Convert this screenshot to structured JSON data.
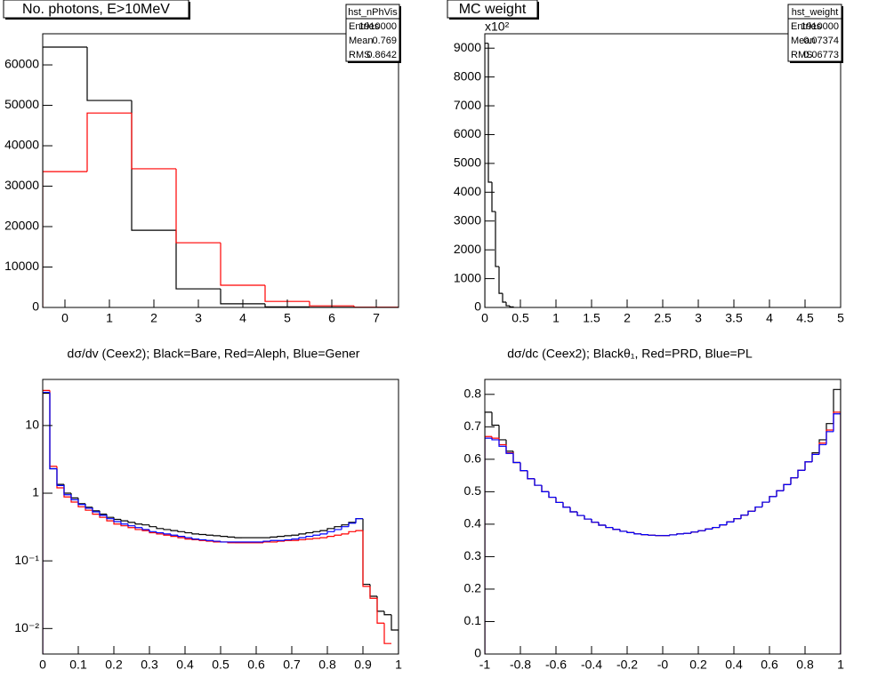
{
  "chart_data": [
    {
      "type": "histogram",
      "title": "No. photons, E>10MeV",
      "bins": [
        -0.5,
        0.5,
        1.5,
        2.5,
        3.5,
        4.5,
        5.5,
        6.5,
        7.5
      ],
      "series": [
        {
          "color": "#000000",
          "values": [
            64400,
            51200,
            19100,
            4600,
            900,
            150,
            20,
            0
          ]
        },
        {
          "color": "#ff0000",
          "values": [
            33600,
            48100,
            34300,
            16000,
            5500,
            1500,
            400,
            50
          ]
        }
      ],
      "xlim": [
        -0.5,
        7.5
      ],
      "ylim": [
        0,
        67700
      ],
      "xticks": [
        0,
        1,
        2,
        3,
        4,
        5,
        6,
        7
      ],
      "yticks": [
        0,
        10000,
        20000,
        30000,
        40000,
        50000,
        60000
      ],
      "log_y": false,
      "stats": {
        "name": "hst_nPhVis",
        "rows": [
          {
            "label": "Entries",
            "value": 1910000
          },
          {
            "label": "Mean",
            "value": 0.769
          },
          {
            "label": "RMS",
            "value": 0.8642
          }
        ]
      }
    },
    {
      "type": "histogram",
      "title": "MC weight",
      "bins": [
        0,
        0.05,
        0.1,
        0.15,
        0.2,
        0.25,
        0.3,
        0.35,
        0.4
      ],
      "values": [
        9170,
        4350,
        3330,
        1420,
        490,
        185,
        60,
        20
      ],
      "color": "#000000",
      "xlim": [
        0,
        5
      ],
      "ylim": [
        0,
        9500
      ],
      "xticks": [
        0,
        0.5,
        1,
        1.5,
        2,
        2.5,
        3,
        3.5,
        4,
        4.5,
        5
      ],
      "yticks": [
        0,
        1000,
        2000,
        3000,
        4000,
        5000,
        6000,
        7000,
        8000,
        9000
      ],
      "y_exponent_label": "x10²",
      "log_y": false,
      "stats": {
        "name": "hst_weight",
        "rows": [
          {
            "label": "Entries",
            "value": 1910000
          },
          {
            "label": "Mean",
            "value": 0.07374
          },
          {
            "label": "RMS",
            "value": 0.06773
          }
        ]
      }
    },
    {
      "type": "histogram",
      "title": "dσ/dv (Ceex2); Black=Bare, Red=Aleph, Blue=Gener",
      "bins": [
        0,
        0.02,
        0.04,
        0.06,
        0.08,
        0.1,
        0.12,
        0.14,
        0.16,
        0.18,
        0.2,
        0.22,
        0.24,
        0.26,
        0.28,
        0.3,
        0.32,
        0.34,
        0.36,
        0.38,
        0.4,
        0.42,
        0.44,
        0.46,
        0.48,
        0.5,
        0.52,
        0.54,
        0.56,
        0.58,
        0.6,
        0.62,
        0.64,
        0.66,
        0.68,
        0.7,
        0.72,
        0.74,
        0.76,
        0.78,
        0.8,
        0.82,
        0.84,
        0.86,
        0.88,
        0.9,
        0.92,
        0.94,
        0.96,
        0.98,
        1
      ],
      "series": [
        {
          "color": "#000000",
          "values": [
            30,
            2.3,
            1.35,
            1.0,
            0.85,
            0.7,
            0.62,
            0.55,
            0.49,
            0.44,
            0.41,
            0.39,
            0.37,
            0.35,
            0.34,
            0.32,
            0.3,
            0.29,
            0.28,
            0.27,
            0.26,
            0.25,
            0.245,
            0.24,
            0.235,
            0.23,
            0.225,
            0.22,
            0.22,
            0.22,
            0.22,
            0.22,
            0.225,
            0.23,
            0.235,
            0.24,
            0.25,
            0.26,
            0.27,
            0.28,
            0.3,
            0.32,
            0.34,
            0.37,
            0.42,
            0.045,
            0.03,
            0.018,
            0.016,
            0.0095
          ]
        },
        {
          "color": "#ff0000",
          "values": [
            33,
            2.5,
            1.2,
            0.88,
            0.74,
            0.63,
            0.56,
            0.49,
            0.44,
            0.39,
            0.35,
            0.33,
            0.31,
            0.29,
            0.28,
            0.26,
            0.25,
            0.24,
            0.23,
            0.22,
            0.21,
            0.205,
            0.2,
            0.195,
            0.19,
            0.19,
            0.185,
            0.185,
            0.185,
            0.185,
            0.185,
            0.19,
            0.19,
            0.195,
            0.2,
            0.2,
            0.205,
            0.21,
            0.215,
            0.22,
            0.23,
            0.24,
            0.25,
            0.27,
            0.28,
            0.042,
            0.028,
            0.012,
            0.006,
            null
          ]
        },
        {
          "color": "#0000ff",
          "values": [
            31,
            2.3,
            1.3,
            0.95,
            0.8,
            0.68,
            0.6,
            0.53,
            0.47,
            0.42,
            0.38,
            0.35,
            0.33,
            0.31,
            0.29,
            0.27,
            0.26,
            0.25,
            0.24,
            0.23,
            0.22,
            0.21,
            0.205,
            0.2,
            0.195,
            0.19,
            0.19,
            0.19,
            0.19,
            0.19,
            0.19,
            0.195,
            0.2,
            0.2,
            0.205,
            0.21,
            0.22,
            0.23,
            0.24,
            0.25,
            0.27,
            0.29,
            0.32,
            0.36,
            0.42,
            null,
            null,
            null,
            null,
            null
          ]
        }
      ],
      "xlim": [
        0,
        1
      ],
      "ylim": [
        0.0042,
        48
      ],
      "xticks": [
        0,
        0.1,
        0.2,
        0.3,
        0.4,
        0.5,
        0.6,
        0.7,
        0.8,
        0.9,
        1
      ],
      "yticks": [
        {
          "value": 0.01,
          "label": "10⁻²"
        },
        {
          "value": 0.1,
          "label": "10⁻¹"
        },
        1,
        10
      ],
      "log_y": true
    },
    {
      "type": "histogram",
      "title": "dσ/dc (Ceex2); Blackθ₁, Red=PRD, Blue=PL",
      "bins": [
        -1,
        -0.96,
        -0.92,
        -0.88,
        -0.84,
        -0.8,
        -0.76,
        -0.72,
        -0.68,
        -0.64,
        -0.6,
        -0.56,
        -0.52,
        -0.48,
        -0.44,
        -0.4,
        -0.36,
        -0.32,
        -0.28,
        -0.24,
        -0.2,
        -0.16,
        -0.12,
        -0.08,
        -0.04,
        0,
        0.04,
        0.08,
        0.12,
        0.16,
        0.2,
        0.24,
        0.28,
        0.32,
        0.36,
        0.4,
        0.44,
        0.48,
        0.52,
        0.56,
        0.6,
        0.64,
        0.68,
        0.72,
        0.76,
        0.8,
        0.84,
        0.88,
        0.92,
        0.96,
        1
      ],
      "series": [
        {
          "color": "#000000",
          "values": [
            0.745,
            0.705,
            0.66,
            0.625,
            0.59,
            0.565,
            0.54,
            0.52,
            0.5,
            0.483,
            0.467,
            0.452,
            0.438,
            0.427,
            0.416,
            0.406,
            0.397,
            0.39,
            0.384,
            0.378,
            0.374,
            0.37,
            0.368,
            0.366,
            0.365,
            0.365,
            0.367,
            0.37,
            0.372,
            0.376,
            0.38,
            0.385,
            0.39,
            0.398,
            0.407,
            0.417,
            0.428,
            0.44,
            0.453,
            0.468,
            0.485,
            0.503,
            0.522,
            0.543,
            0.566,
            0.592,
            0.62,
            0.66,
            0.71,
            0.815
          ]
        },
        {
          "color": "#ff0000",
          "values": [
            0.67,
            0.665,
            0.645,
            0.62,
            0.59,
            0.565,
            0.54,
            0.52,
            0.5,
            0.483,
            0.467,
            0.452,
            0.438,
            0.427,
            0.416,
            0.406,
            0.397,
            0.39,
            0.384,
            0.378,
            0.374,
            0.37,
            0.368,
            0.366,
            0.365,
            0.365,
            0.367,
            0.37,
            0.372,
            0.376,
            0.38,
            0.385,
            0.39,
            0.398,
            0.407,
            0.417,
            0.428,
            0.44,
            0.453,
            0.468,
            0.485,
            0.503,
            0.522,
            0.543,
            0.566,
            0.592,
            0.615,
            0.65,
            0.69,
            0.745
          ]
        },
        {
          "color": "#0000ff",
          "values": [
            0.665,
            0.66,
            0.64,
            0.618,
            0.59,
            0.565,
            0.54,
            0.52,
            0.5,
            0.483,
            0.467,
            0.452,
            0.438,
            0.427,
            0.416,
            0.406,
            0.397,
            0.39,
            0.384,
            0.378,
            0.374,
            0.37,
            0.368,
            0.366,
            0.365,
            0.365,
            0.367,
            0.37,
            0.372,
            0.376,
            0.38,
            0.385,
            0.39,
            0.398,
            0.407,
            0.417,
            0.428,
            0.44,
            0.453,
            0.468,
            0.485,
            0.503,
            0.522,
            0.543,
            0.566,
            0.592,
            0.615,
            0.645,
            0.685,
            0.74
          ]
        }
      ],
      "xlim": [
        -1,
        1
      ],
      "ylim": [
        0,
        0.846
      ],
      "xticks": [
        -1,
        -0.8,
        -0.6,
        -0.4,
        -0.2,
        {
          "value": 0,
          "label": "-0"
        },
        0.2,
        0.4,
        0.6,
        0.8,
        1
      ],
      "yticks": [
        0,
        0.1,
        0.2,
        0.3,
        0.4,
        0.5,
        0.6,
        0.7,
        0.8
      ],
      "log_y": false
    }
  ]
}
